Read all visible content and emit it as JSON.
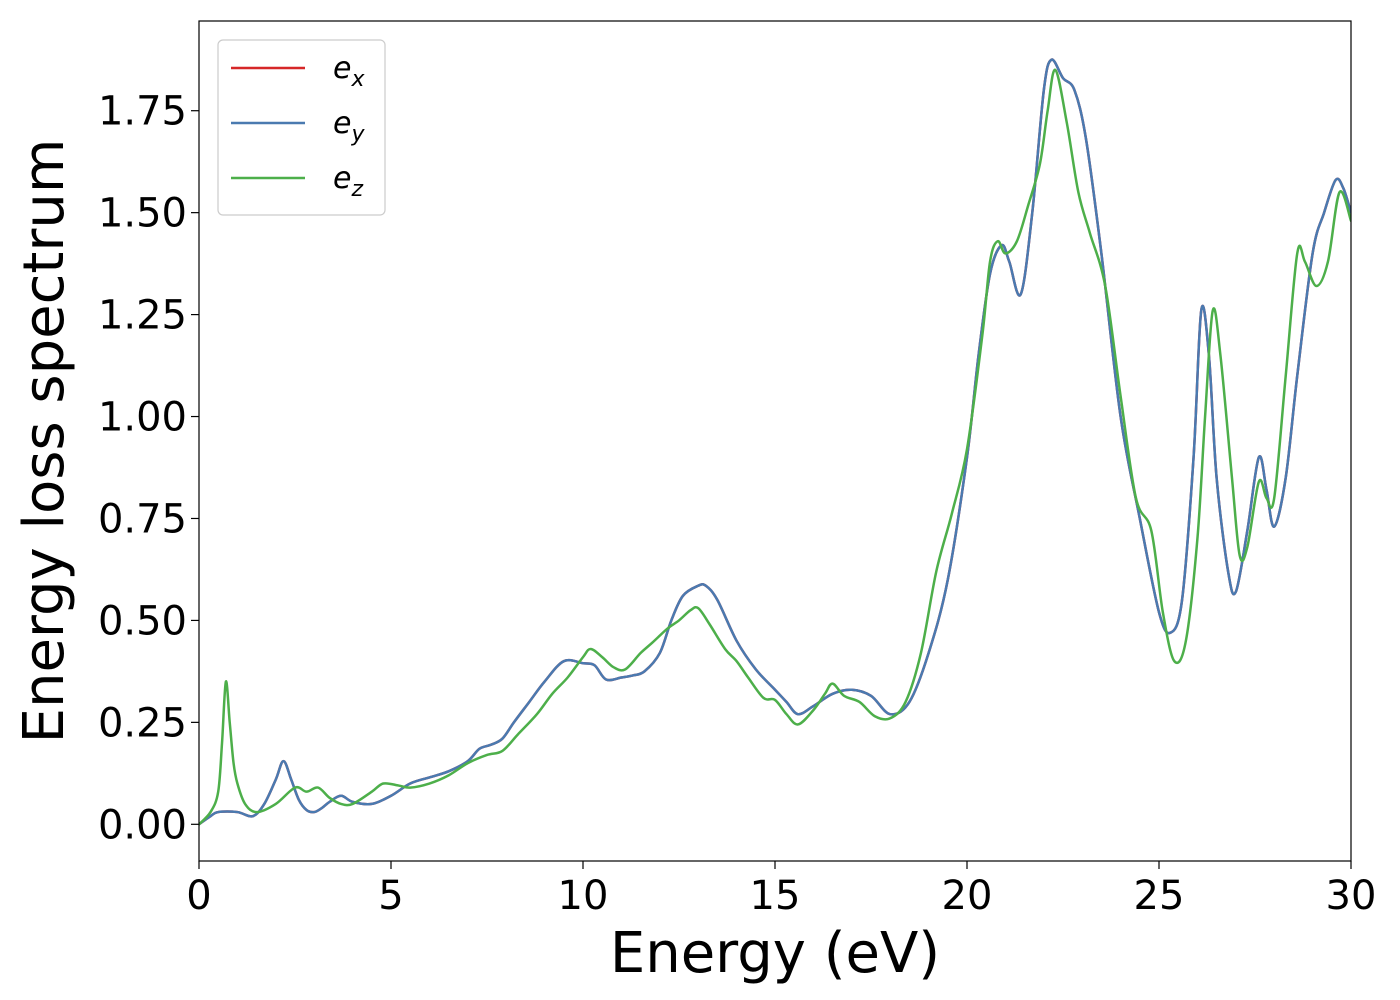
{
  "chart_data": {
    "type": "line",
    "title": "",
    "xlabel": "Energy (eV)",
    "ylabel": "Energy loss spectrum",
    "xlim": [
      0,
      30
    ],
    "ylim": [
      -0.09,
      1.97
    ],
    "xticks": [
      0,
      5,
      10,
      15,
      20,
      25,
      30
    ],
    "xtick_labels": [
      "0",
      "5",
      "10",
      "15",
      "20",
      "25",
      "30"
    ],
    "yticks": [
      0.0,
      0.25,
      0.5,
      0.75,
      1.0,
      1.25,
      1.5,
      1.75
    ],
    "ytick_labels": [
      "0.00",
      "0.25",
      "0.50",
      "0.75",
      "1.00",
      "1.25",
      "1.50",
      "1.75"
    ],
    "grid": false,
    "legend_position": "top-left",
    "series": [
      {
        "name": "e_x",
        "name_base": "e",
        "name_sub": "x",
        "color": "#d62728",
        "x": [
          0,
          0.3,
          0.5,
          1.0,
          1.4,
          1.7,
          2.0,
          2.2,
          2.4,
          2.6,
          2.8,
          3.0,
          3.2,
          3.4,
          3.7,
          4.0,
          4.5,
          5.0,
          5.5,
          6.0,
          6.5,
          7.0,
          7.3,
          7.6,
          7.9,
          8.2,
          8.6,
          9.0,
          9.5,
          10.0,
          10.3,
          10.6,
          11.0,
          11.3,
          11.6,
          12.0,
          12.3,
          12.6,
          13.0,
          13.2,
          13.5,
          14.0,
          14.5,
          15.0,
          15.3,
          15.6,
          16.0,
          16.5,
          17.0,
          17.5,
          18.0,
          18.5,
          19.0,
          19.5,
          20.0,
          20.3,
          20.6,
          20.9,
          21.1,
          21.4,
          21.7,
          22.0,
          22.2,
          22.5,
          22.8,
          23.1,
          23.5,
          24.0,
          24.5,
          25.0,
          25.3,
          25.6,
          25.9,
          26.1,
          26.3,
          26.5,
          26.8,
          27.0,
          27.3,
          27.6,
          27.8,
          28.0,
          28.3,
          28.6,
          29.0,
          29.3,
          29.6,
          29.8,
          30.0
        ],
        "y": [
          0.0,
          0.02,
          0.03,
          0.03,
          0.02,
          0.05,
          0.11,
          0.155,
          0.11,
          0.06,
          0.035,
          0.03,
          0.04,
          0.055,
          0.07,
          0.055,
          0.05,
          0.07,
          0.1,
          0.115,
          0.13,
          0.155,
          0.185,
          0.195,
          0.21,
          0.25,
          0.3,
          0.35,
          0.4,
          0.395,
          0.39,
          0.355,
          0.36,
          0.365,
          0.375,
          0.42,
          0.5,
          0.56,
          0.585,
          0.585,
          0.55,
          0.45,
          0.38,
          0.33,
          0.3,
          0.27,
          0.29,
          0.32,
          0.33,
          0.315,
          0.27,
          0.3,
          0.42,
          0.6,
          0.9,
          1.15,
          1.35,
          1.42,
          1.38,
          1.3,
          1.5,
          1.8,
          1.875,
          1.83,
          1.8,
          1.68,
          1.4,
          1.0,
          0.75,
          0.52,
          0.47,
          0.55,
          0.9,
          1.26,
          1.15,
          0.85,
          0.62,
          0.57,
          0.72,
          0.9,
          0.82,
          0.73,
          0.85,
          1.1,
          1.4,
          1.5,
          1.58,
          1.56,
          1.5
        ]
      },
      {
        "name": "e_y",
        "name_base": "e",
        "name_sub": "y",
        "color": "#4a7ab0",
        "x": [
          0,
          0.3,
          0.5,
          1.0,
          1.4,
          1.7,
          2.0,
          2.2,
          2.4,
          2.6,
          2.8,
          3.0,
          3.2,
          3.4,
          3.7,
          4.0,
          4.5,
          5.0,
          5.5,
          6.0,
          6.5,
          7.0,
          7.3,
          7.6,
          7.9,
          8.2,
          8.6,
          9.0,
          9.5,
          10.0,
          10.3,
          10.6,
          11.0,
          11.3,
          11.6,
          12.0,
          12.3,
          12.6,
          13.0,
          13.2,
          13.5,
          14.0,
          14.5,
          15.0,
          15.3,
          15.6,
          16.0,
          16.5,
          17.0,
          17.5,
          18.0,
          18.5,
          19.0,
          19.5,
          20.0,
          20.3,
          20.6,
          20.9,
          21.1,
          21.4,
          21.7,
          22.0,
          22.2,
          22.5,
          22.8,
          23.1,
          23.5,
          24.0,
          24.5,
          25.0,
          25.3,
          25.6,
          25.9,
          26.1,
          26.3,
          26.5,
          26.8,
          27.0,
          27.3,
          27.6,
          27.8,
          28.0,
          28.3,
          28.6,
          29.0,
          29.3,
          29.6,
          29.8,
          30.0
        ],
        "y": [
          0.0,
          0.02,
          0.03,
          0.03,
          0.02,
          0.05,
          0.11,
          0.155,
          0.11,
          0.06,
          0.035,
          0.03,
          0.04,
          0.055,
          0.07,
          0.055,
          0.05,
          0.07,
          0.1,
          0.115,
          0.13,
          0.155,
          0.185,
          0.195,
          0.21,
          0.25,
          0.3,
          0.35,
          0.4,
          0.395,
          0.39,
          0.355,
          0.36,
          0.365,
          0.375,
          0.42,
          0.5,
          0.56,
          0.585,
          0.585,
          0.55,
          0.45,
          0.38,
          0.33,
          0.3,
          0.27,
          0.29,
          0.32,
          0.33,
          0.315,
          0.27,
          0.3,
          0.42,
          0.6,
          0.9,
          1.15,
          1.35,
          1.42,
          1.38,
          1.3,
          1.5,
          1.8,
          1.875,
          1.83,
          1.8,
          1.68,
          1.4,
          1.0,
          0.75,
          0.52,
          0.47,
          0.55,
          0.9,
          1.26,
          1.15,
          0.85,
          0.62,
          0.57,
          0.72,
          0.9,
          0.82,
          0.73,
          0.85,
          1.1,
          1.4,
          1.5,
          1.58,
          1.56,
          1.5
        ]
      },
      {
        "name": "e_z",
        "name_base": "e",
        "name_sub": "z",
        "color": "#4daf4a",
        "x": [
          0,
          0.3,
          0.5,
          0.6,
          0.7,
          0.8,
          0.9,
          1.0,
          1.2,
          1.5,
          2.0,
          2.5,
          2.8,
          3.1,
          3.4,
          3.7,
          4.0,
          4.5,
          4.8,
          5.2,
          5.5,
          6.0,
          6.5,
          7.0,
          7.5,
          7.9,
          8.3,
          8.8,
          9.2,
          9.6,
          10.0,
          10.2,
          10.5,
          10.8,
          11.1,
          11.5,
          11.8,
          12.2,
          12.5,
          12.8,
          13.0,
          13.3,
          13.7,
          14.0,
          14.3,
          14.7,
          15.0,
          15.3,
          15.6,
          16.0,
          16.3,
          16.5,
          16.8,
          17.2,
          17.6,
          18.0,
          18.4,
          18.8,
          19.2,
          19.6,
          20.0,
          20.4,
          20.6,
          20.8,
          21.0,
          21.3,
          21.6,
          21.9,
          22.1,
          22.3,
          22.6,
          22.9,
          23.2,
          23.6,
          24.0,
          24.4,
          24.8,
          25.1,
          25.4,
          25.7,
          26.0,
          26.2,
          26.4,
          26.6,
          26.9,
          27.1,
          27.3,
          27.6,
          27.8,
          28.0,
          28.3,
          28.6,
          28.8,
          29.1,
          29.4,
          29.7,
          30.0
        ],
        "y": [
          0.0,
          0.03,
          0.08,
          0.2,
          0.35,
          0.25,
          0.15,
          0.1,
          0.05,
          0.03,
          0.05,
          0.09,
          0.08,
          0.09,
          0.065,
          0.05,
          0.05,
          0.08,
          0.1,
          0.095,
          0.09,
          0.1,
          0.12,
          0.15,
          0.17,
          0.18,
          0.22,
          0.27,
          0.32,
          0.36,
          0.41,
          0.43,
          0.41,
          0.385,
          0.38,
          0.42,
          0.445,
          0.48,
          0.5,
          0.525,
          0.53,
          0.49,
          0.43,
          0.4,
          0.36,
          0.31,
          0.305,
          0.27,
          0.245,
          0.28,
          0.32,
          0.345,
          0.315,
          0.3,
          0.265,
          0.26,
          0.3,
          0.42,
          0.62,
          0.76,
          0.92,
          1.2,
          1.38,
          1.43,
          1.4,
          1.43,
          1.52,
          1.62,
          1.75,
          1.85,
          1.72,
          1.55,
          1.45,
          1.32,
          1.05,
          0.8,
          0.72,
          0.52,
          0.4,
          0.45,
          0.7,
          1.0,
          1.26,
          1.15,
          0.85,
          0.66,
          0.68,
          0.84,
          0.8,
          0.8,
          1.1,
          1.4,
          1.38,
          1.32,
          1.38,
          1.55,
          1.48
        ]
      }
    ]
  }
}
